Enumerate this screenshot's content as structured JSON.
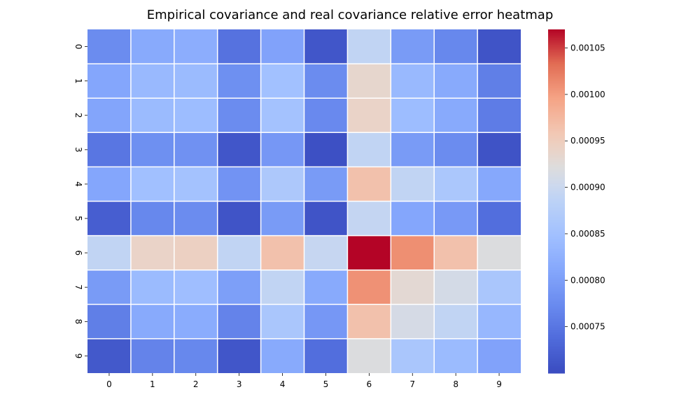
{
  "chart_data": {
    "type": "heatmap",
    "title": "Empirical covariance and real covariance relative error heatmap",
    "xlabel": "",
    "ylabel": "",
    "x_categories": [
      "0",
      "1",
      "2",
      "3",
      "4",
      "5",
      "6",
      "7",
      "8",
      "9"
    ],
    "y_categories": [
      "0",
      "1",
      "2",
      "3",
      "4",
      "5",
      "6",
      "7",
      "8",
      "9"
    ],
    "values": [
      [
        0.000775,
        0.000815,
        0.00082,
        0.000745,
        0.000805,
        0.000712,
        0.00089,
        0.000795,
        0.00077,
        0.00071
      ],
      [
        0.00081,
        0.000838,
        0.00084,
        0.00078,
        0.00085,
        0.000775,
        0.000935,
        0.000838,
        0.000815,
        0.00076
      ],
      [
        0.000808,
        0.00084,
        0.000843,
        0.000775,
        0.000852,
        0.000772,
        0.00094,
        0.000843,
        0.000815,
        0.000757
      ],
      [
        0.00075,
        0.00078,
        0.000782,
        0.000712,
        0.00079,
        0.000705,
        0.00089,
        0.000795,
        0.000775,
        0.000708
      ],
      [
        0.00081,
        0.000848,
        0.000852,
        0.000785,
        0.000865,
        0.000795,
        0.000965,
        0.00089,
        0.000862,
        0.000812
      ],
      [
        0.000722,
        0.00077,
        0.000775,
        0.00071,
        0.000795,
        0.00071,
        0.000893,
        0.00081,
        0.000793,
        0.00074
      ],
      [
        0.00089,
        0.00094,
        0.000945,
        0.00089,
        0.000965,
        0.000895,
        0.00107,
        0.00101,
        0.000965,
        0.00092
      ],
      [
        0.000795,
        0.00084,
        0.000845,
        0.0008,
        0.00089,
        0.000815,
        0.001008,
        0.00093,
        0.00091,
        0.00086
      ],
      [
        0.00076,
        0.000815,
        0.000818,
        0.000765,
        0.00086,
        0.00079,
        0.000965,
        0.000912,
        0.00089,
        0.000835
      ],
      [
        0.000715,
        0.000765,
        0.00077,
        0.000712,
        0.000815,
        0.00074,
        0.00092,
        0.00086,
        0.00084,
        0.000805
      ]
    ],
    "colorbar": {
      "colormap": "coolwarm",
      "vmin": 0.0007,
      "vmax": 0.00107,
      "ticks": [
        0.00075,
        0.0008,
        0.00085,
        0.0009,
        0.00095,
        0.001,
        0.00105
      ],
      "tick_labels": [
        "0.00075",
        "0.00080",
        "0.00085",
        "0.00090",
        "0.00095",
        "0.00100",
        "0.00105"
      ]
    },
    "grid": false,
    "cell_borders": "#ffffff"
  }
}
